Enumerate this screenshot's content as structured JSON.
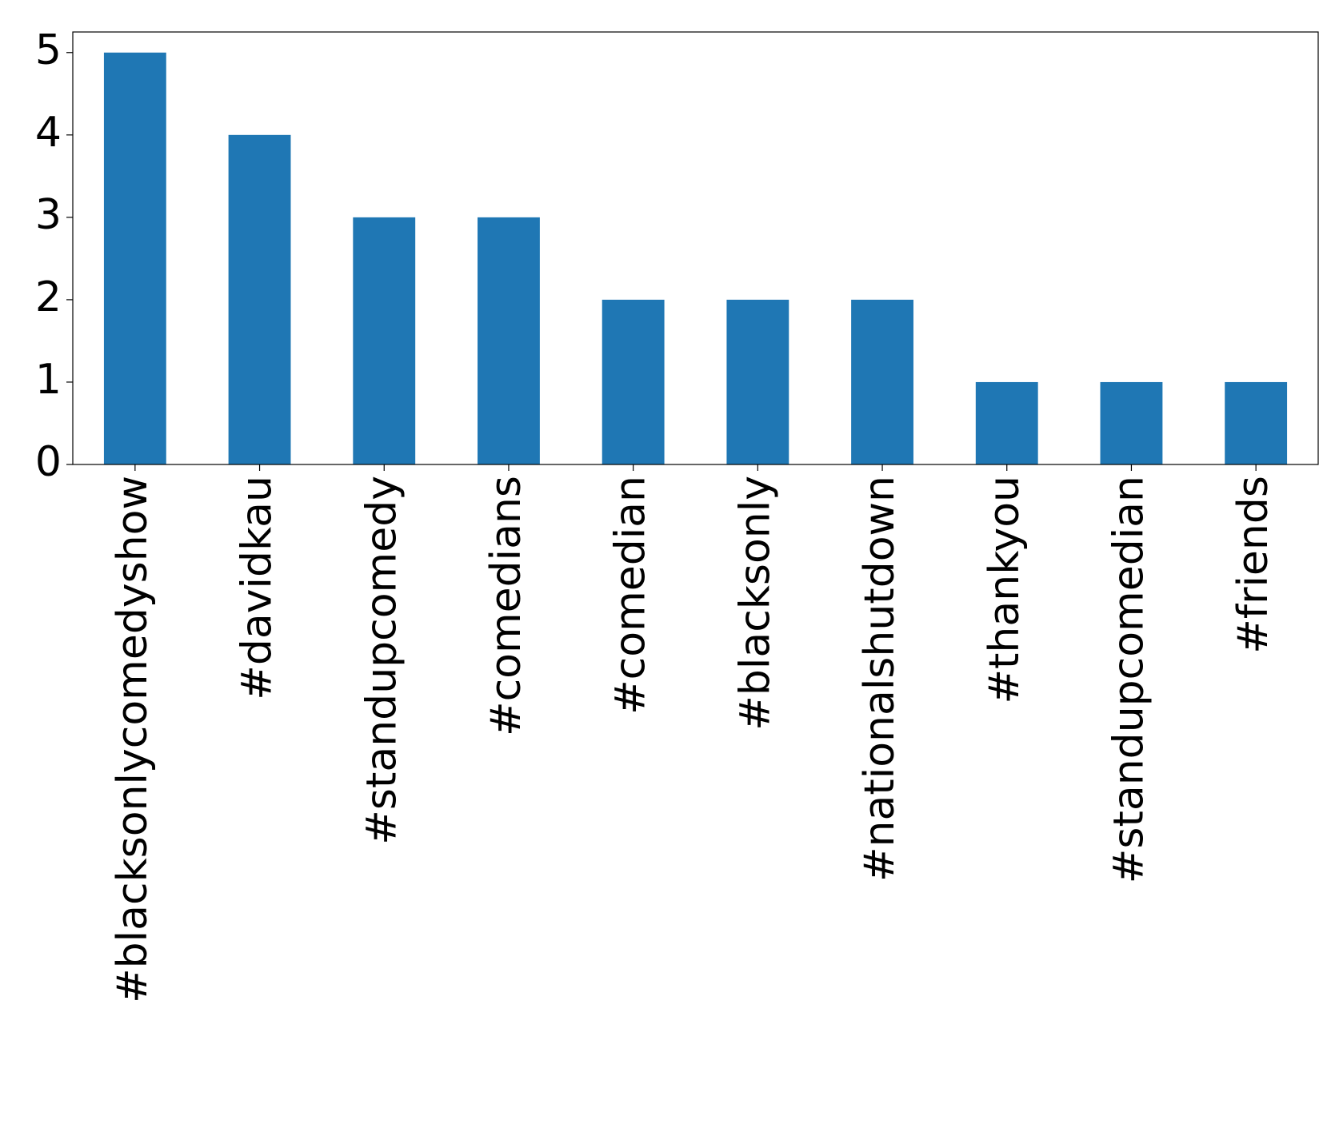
{
  "chart_data": {
    "type": "bar",
    "categories": [
      "#blacksonlycomedyshow",
      "#davidkau",
      "#standupcomedy",
      "#comedians",
      "#comedian",
      "#blacksonly",
      "#nationalshutdown",
      "#thankyou",
      "#standupcomedian",
      "#friends"
    ],
    "values": [
      5,
      4,
      3,
      3,
      2,
      2,
      2,
      1,
      1,
      1
    ],
    "color": "#1f77b4",
    "ylim": [
      0,
      5.25
    ],
    "yticks": [
      0,
      1,
      2,
      3,
      4,
      5
    ],
    "grid": false
  }
}
